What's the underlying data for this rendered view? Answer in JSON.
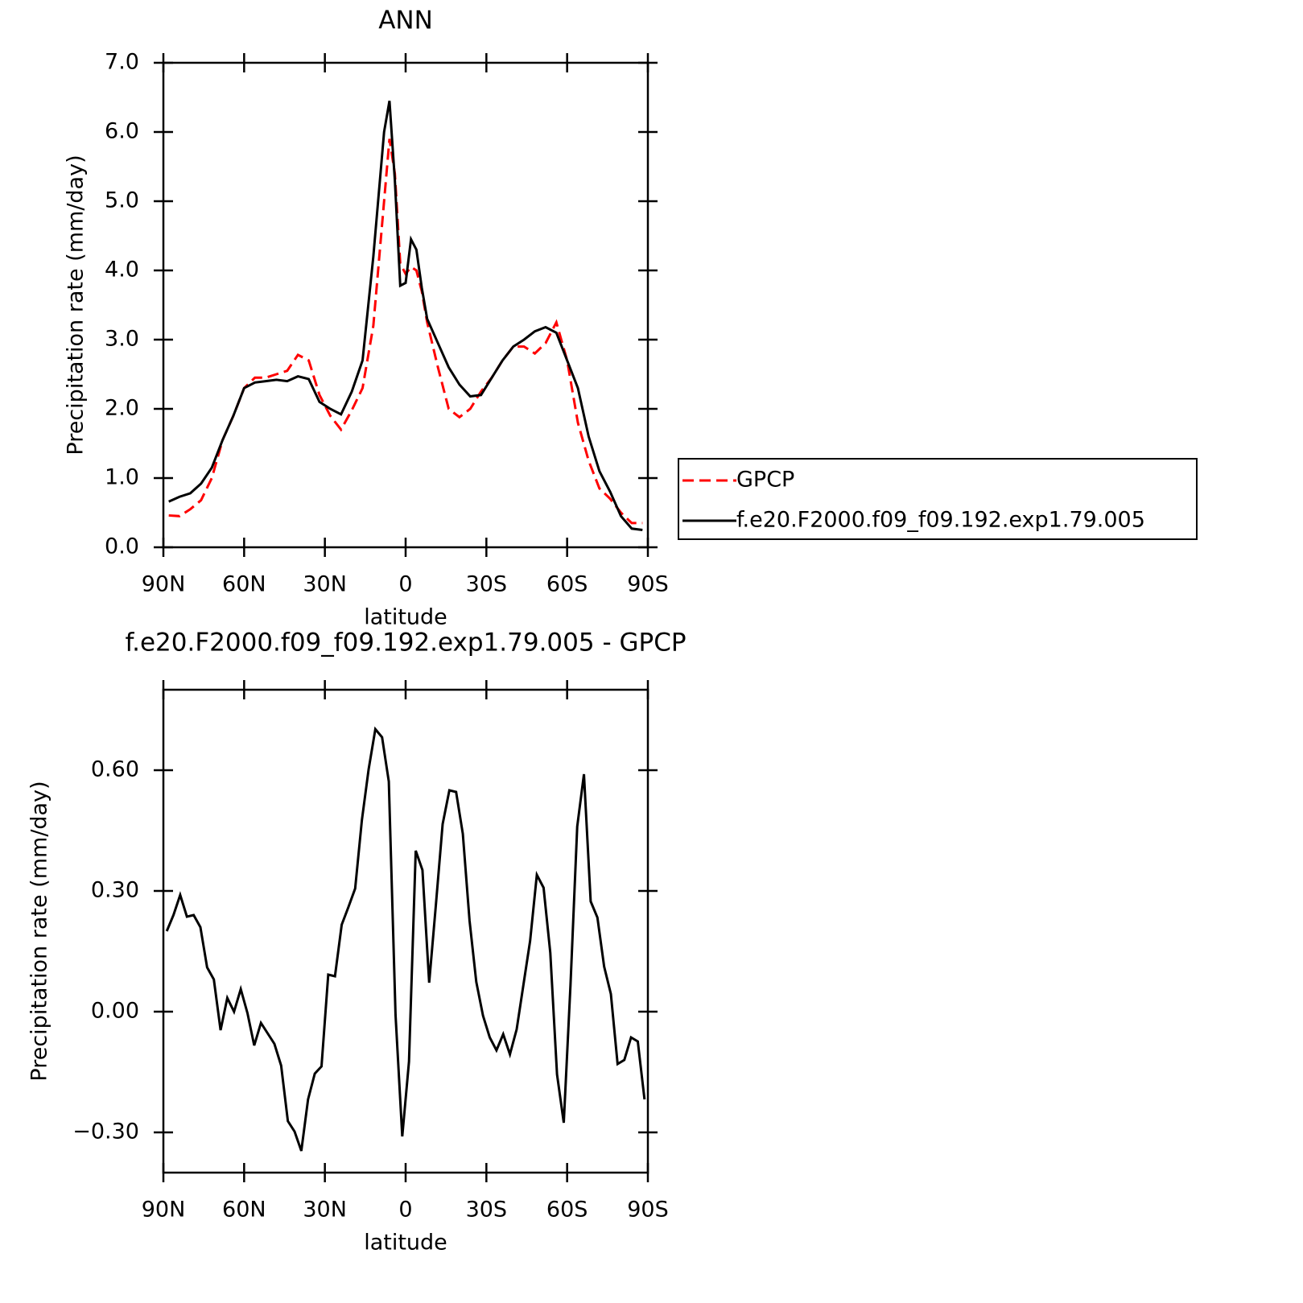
{
  "chart_data": [
    {
      "type": "line",
      "title": "ANN",
      "xlabel": "latitude",
      "ylabel": "Precipitation rate (mm/day)",
      "x": [
        88,
        84,
        80,
        76,
        72,
        68,
        64,
        60,
        56,
        52,
        48,
        44,
        40,
        36,
        32,
        28,
        24,
        20,
        16,
        12,
        8,
        6,
        4,
        2,
        0,
        -2,
        -4,
        -6,
        -8,
        -12,
        -16,
        -20,
        -24,
        -28,
        -32,
        -36,
        -40,
        -44,
        -48,
        -52,
        -56,
        -60,
        -64,
        -68,
        -72,
        -76,
        -80,
        -84,
        -88
      ],
      "series": [
        {
          "name": "GPCP",
          "color": "#ff0000",
          "line_style": "dashed",
          "values": [
            0.46,
            0.45,
            0.55,
            0.68,
            1.0,
            1.55,
            1.9,
            2.3,
            2.45,
            2.45,
            2.5,
            2.55,
            2.78,
            2.7,
            2.2,
            1.9,
            1.7,
            1.98,
            2.3,
            3.2,
            5.0,
            5.9,
            5.4,
            4.1,
            3.95,
            4.05,
            4.0,
            3.7,
            3.25,
            2.6,
            2.0,
            1.88,
            2.0,
            2.25,
            2.45,
            2.7,
            2.9,
            2.9,
            2.8,
            2.95,
            3.25,
            2.7,
            1.8,
            1.25,
            0.85,
            0.7,
            0.5,
            0.35,
            0.35
          ]
        },
        {
          "name": "f.e20.F2000.f09_f09.192.exp1.79.005",
          "color": "#000000",
          "line_style": "solid",
          "values": [
            0.66,
            0.73,
            0.78,
            0.92,
            1.15,
            1.55,
            1.9,
            2.3,
            2.38,
            2.4,
            2.42,
            2.4,
            2.47,
            2.43,
            2.1,
            2.0,
            1.92,
            2.25,
            2.7,
            4.2,
            6.0,
            6.45,
            5.3,
            3.78,
            3.82,
            4.45,
            4.3,
            3.75,
            3.3,
            2.95,
            2.6,
            2.35,
            2.18,
            2.2,
            2.45,
            2.7,
            2.9,
            3.0,
            3.12,
            3.18,
            3.1,
            2.7,
            2.3,
            1.6,
            1.1,
            0.8,
            0.45,
            0.27,
            0.25
          ]
        }
      ],
      "xlim": [
        90,
        -90
      ],
      "xticks": [
        {
          "value": 90,
          "label": "90N"
        },
        {
          "value": 60,
          "label": "60N"
        },
        {
          "value": 30,
          "label": "30N"
        },
        0,
        {
          "value": -30,
          "label": "30S"
        },
        {
          "value": -60,
          "label": "60S"
        },
        {
          "value": -90,
          "label": "90S"
        }
      ],
      "ylim": [
        0,
        7
      ],
      "yticks": [
        {
          "value": 0,
          "label": "0.0"
        },
        {
          "value": 1,
          "label": "1.0"
        },
        {
          "value": 2,
          "label": "2.0"
        },
        {
          "value": 3,
          "label": "3.0"
        },
        {
          "value": 4,
          "label": "4.0"
        },
        {
          "value": 5,
          "label": "5.0"
        },
        {
          "value": 6,
          "label": "6.0"
        },
        {
          "value": 7,
          "label": "7.0"
        }
      ],
      "grid": false,
      "legend": "right"
    },
    {
      "type": "line",
      "title": "f.e20.F2000.f09_f09.192.exp1.79.005 - GPCP",
      "xlabel": "latitude",
      "ylabel": "Precipitation rate (mm/day)",
      "x": [
        88.75,
        86.25,
        83.75,
        81.25,
        78.75,
        76.25,
        73.75,
        71.25,
        68.75,
        66.25,
        63.75,
        61.25,
        58.75,
        56.25,
        53.75,
        51.25,
        48.75,
        46.25,
        43.75,
        41.25,
        38.75,
        36.25,
        33.75,
        31.25,
        28.75,
        26.25,
        23.75,
        21.25,
        18.75,
        16.25,
        13.75,
        11.25,
        8.75,
        6.25,
        3.75,
        1.25,
        -1.25,
        -3.75,
        -6.25,
        -8.75,
        -11.25,
        -13.75,
        -16.25,
        -18.75,
        -21.25,
        -23.75,
        -26.25,
        -28.75,
        -31.25,
        -33.75,
        -36.25,
        -38.75,
        -41.25,
        -43.75,
        -46.25,
        -48.75,
        -51.25,
        -53.75,
        -56.25,
        -58.75,
        -61.25,
        -63.75,
        -66.25,
        -68.75,
        -71.25,
        -73.75,
        -76.25,
        -78.75,
        -81.25,
        -83.75,
        -86.25,
        -88.75
      ],
      "series": [
        {
          "color": "#000000",
          "line_style": "solid",
          "values": [
            0.2,
            0.24,
            0.29,
            0.236,
            0.24,
            0.21,
            0.11,
            0.08,
            -0.046,
            0.034,
            0.0,
            0.056,
            -0.004,
            -0.084,
            -0.028,
            -0.054,
            -0.08,
            -0.134,
            -0.272,
            -0.298,
            -0.346,
            -0.218,
            -0.154,
            -0.136,
            0.092,
            0.088,
            0.216,
            0.26,
            0.306,
            0.476,
            0.602,
            0.702,
            0.682,
            0.572,
            -0.008,
            -0.31,
            -0.124,
            0.4,
            0.352,
            0.072,
            0.266,
            0.466,
            0.55,
            0.546,
            0.442,
            0.226,
            0.074,
            -0.01,
            -0.064,
            -0.096,
            -0.056,
            -0.106,
            -0.044,
            0.066,
            0.176,
            0.34,
            0.308,
            0.146,
            -0.156,
            -0.276,
            0.066,
            0.46,
            0.59,
            0.274,
            0.234,
            0.112,
            0.044,
            -0.13,
            -0.12,
            -0.064,
            -0.074,
            -0.218
          ]
        }
      ],
      "xlim": [
        90,
        -90
      ],
      "xticks": [
        {
          "value": 90,
          "label": "90N"
        },
        {
          "value": 60,
          "label": "60N"
        },
        {
          "value": 30,
          "label": "30N"
        },
        0,
        {
          "value": -30,
          "label": "30S"
        },
        {
          "value": -60,
          "label": "60S"
        },
        {
          "value": -90,
          "label": "90S"
        }
      ],
      "ylim": [
        -0.4,
        0.8
      ],
      "yticks": [
        {
          "value": -0.3,
          "label": "−0.30"
        },
        {
          "value": 0,
          "label": "0.00"
        },
        {
          "value": 0.3,
          "label": "0.30"
        },
        {
          "value": 0.6,
          "label": "0.60"
        }
      ],
      "grid": false
    }
  ]
}
